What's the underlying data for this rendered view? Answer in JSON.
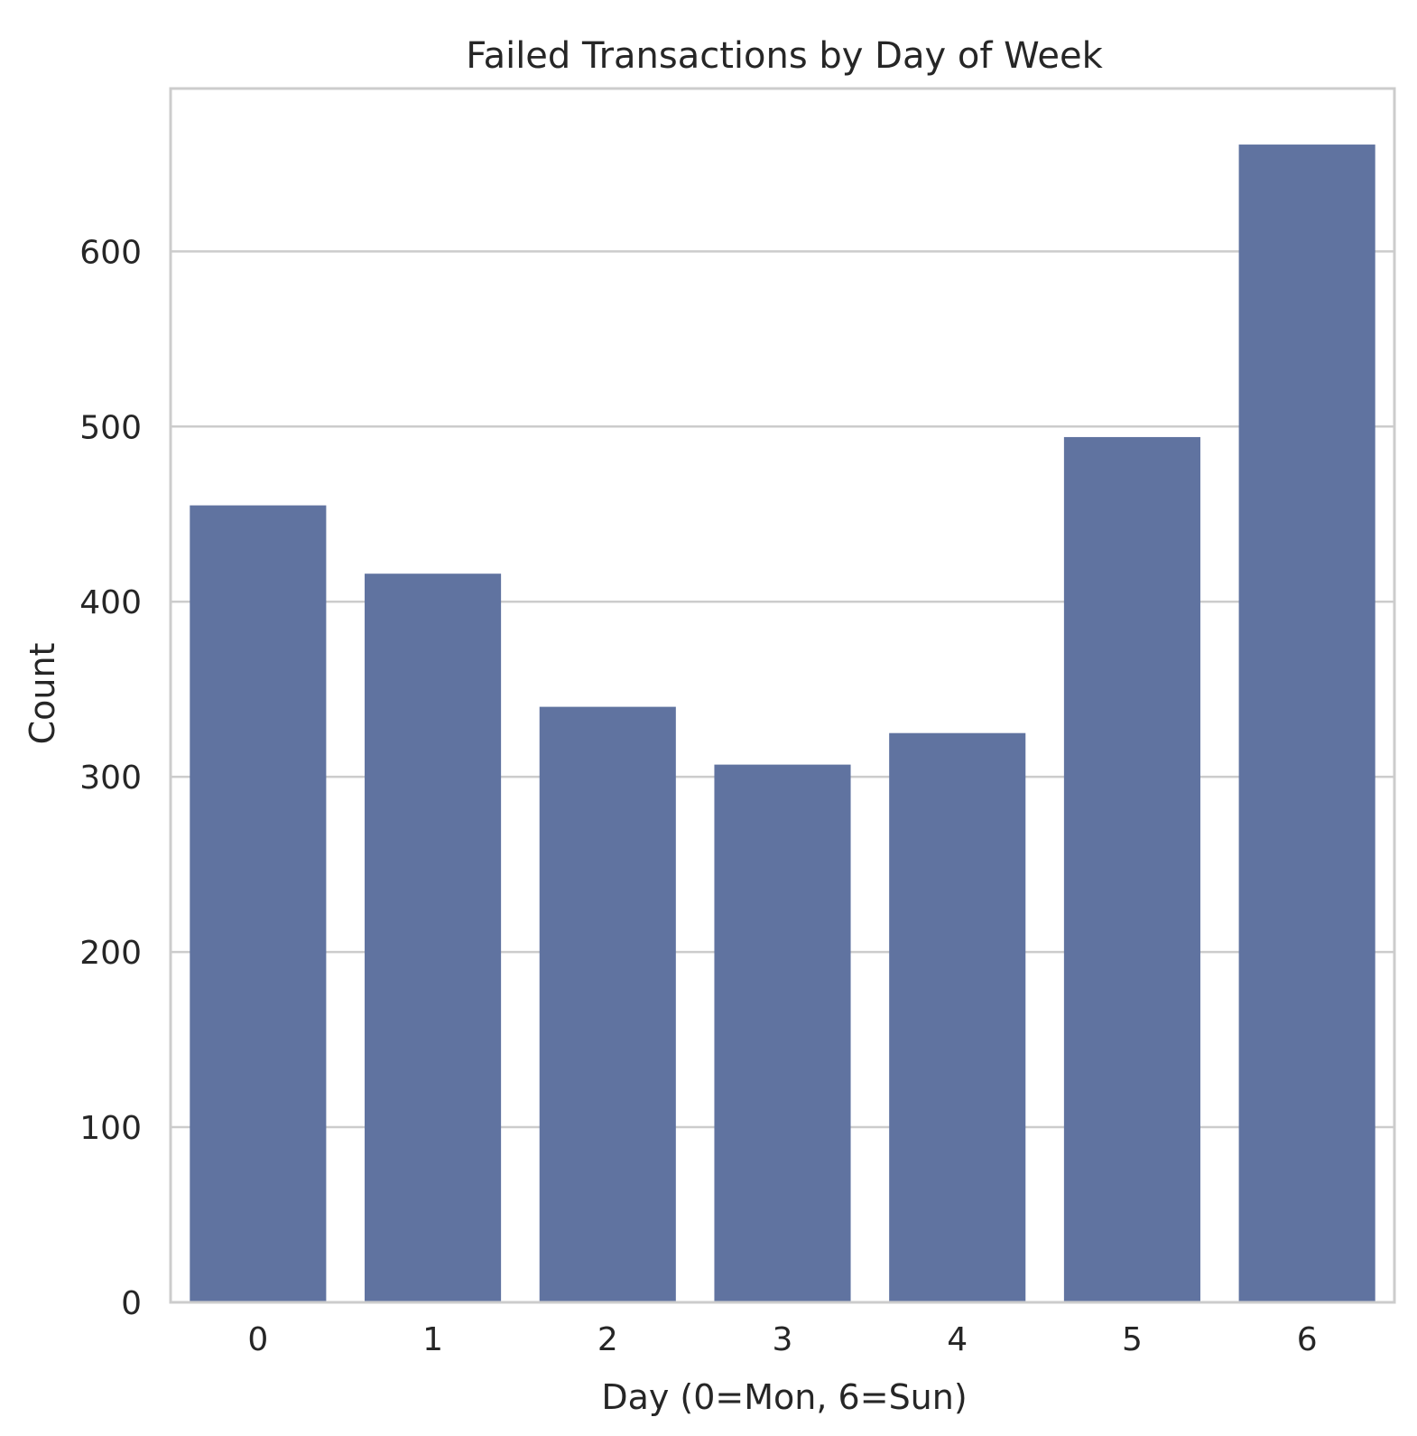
{
  "chart_data": {
    "type": "bar",
    "title": "Failed Transactions by Day of Week",
    "xlabel": "Day (0=Mon, 6=Sun)",
    "ylabel": "Count",
    "categories": [
      "0",
      "1",
      "2",
      "3",
      "4",
      "5",
      "6"
    ],
    "values": [
      455,
      416,
      340,
      307,
      325,
      494,
      661
    ],
    "ylim": [
      0,
      693
    ],
    "yticks": [
      0,
      100,
      200,
      300,
      400,
      500,
      600
    ],
    "ytick_labels": [
      "0",
      "100",
      "200",
      "300",
      "400",
      "500",
      "600"
    ],
    "grid": true,
    "colors": {
      "bar": "#6073a0",
      "grid": "#cccccc",
      "frame": "#cccccc",
      "text": "#262626"
    }
  }
}
